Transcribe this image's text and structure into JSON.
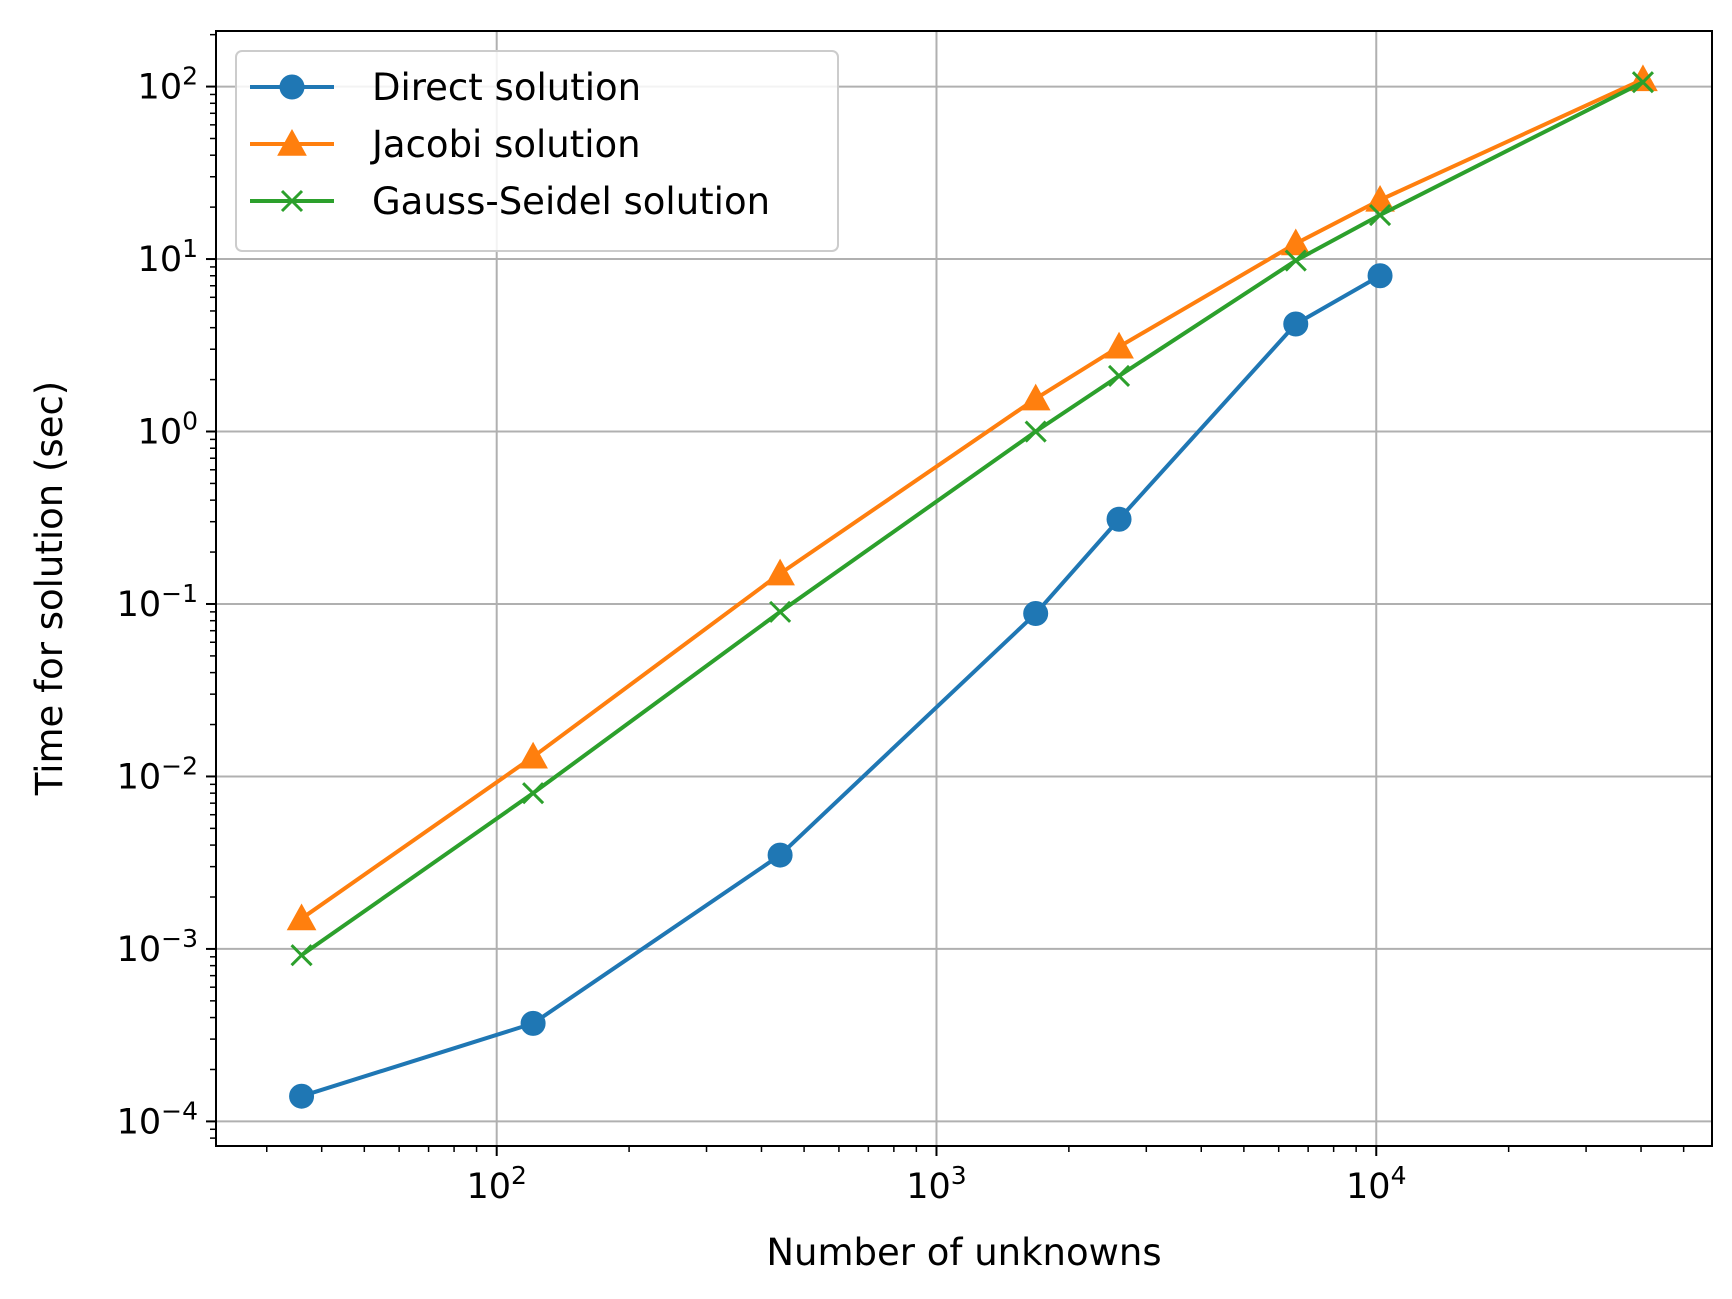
{
  "chart_data": {
    "type": "line",
    "title": "",
    "xlabel": "Number of unknowns",
    "ylabel": "Time for solution (sec)",
    "xscale": "log",
    "yscale": "log",
    "xlim": [
      23,
      58000
    ],
    "ylim": [
      7.2e-05,
      210
    ],
    "xticks": [
      {
        "value": 100,
        "base": "10",
        "exp": "2"
      },
      {
        "value": 1000,
        "base": "10",
        "exp": "3"
      },
      {
        "value": 10000,
        "base": "10",
        "exp": "4"
      }
    ],
    "yticks": [
      {
        "value": 0.0001,
        "base": "10",
        "exp": "−4"
      },
      {
        "value": 0.001,
        "base": "10",
        "exp": "−3"
      },
      {
        "value": 0.01,
        "base": "10",
        "exp": "−2"
      },
      {
        "value": 0.1,
        "base": "10",
        "exp": "−1"
      },
      {
        "value": 1,
        "base": "10",
        "exp": "0"
      },
      {
        "value": 10,
        "base": "10",
        "exp": "1"
      },
      {
        "value": 100,
        "base": "10",
        "exp": "2"
      }
    ],
    "grid": true,
    "legend_position": "top-left",
    "series": [
      {
        "name": "Direct solution",
        "color": "#1f77b4",
        "marker": "circle",
        "x": [
          36,
          121,
          441,
          1681,
          2601,
          6561,
          10201
        ],
        "y": [
          0.00014,
          0.00037,
          0.0035,
          0.088,
          0.31,
          4.2,
          8.0
        ]
      },
      {
        "name": "Jacobi solution",
        "color": "#ff7f0e",
        "marker": "triangle",
        "x": [
          36,
          121,
          441,
          1681,
          2601,
          6561,
          10201,
          40401
        ],
        "y": [
          0.0015,
          0.013,
          0.15,
          1.55,
          3.1,
          12.3,
          22,
          110
        ]
      },
      {
        "name": "Gauss-Seidel solution",
        "color": "#2ca02c",
        "marker": "x",
        "x": [
          36,
          121,
          441,
          1681,
          2601,
          6561,
          10201,
          40401
        ],
        "y": [
          0.00092,
          0.008,
          0.09,
          1.0,
          2.1,
          9.8,
          18,
          106
        ]
      }
    ]
  }
}
